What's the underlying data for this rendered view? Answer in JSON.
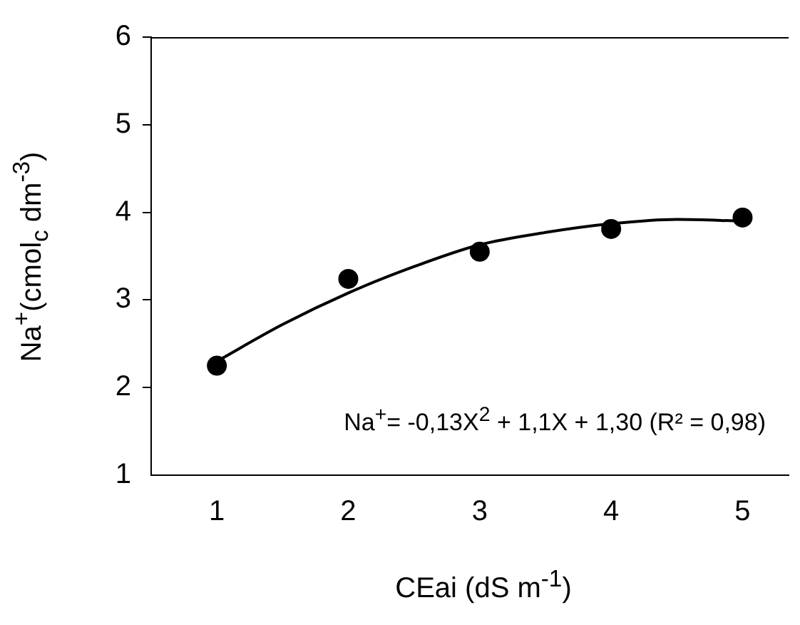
{
  "chart_data": {
    "type": "scatter",
    "xlabel": "CEai (dS m$^{-1}$)",
    "ylabel": "Na$^{+}$(cmol$_{c}$ dm$^{-3}$)",
    "annotations": [
      "Na$^{+}$= -0,13X$^{2}$ + 1,1X + 1,30 (R² = 0,98)"
    ],
    "x": [
      1,
      2,
      3,
      4,
      5
    ],
    "xlim": [
      0.5,
      5.35
    ],
    "xticks": [
      1,
      2,
      3,
      4,
      5
    ],
    "ylim": [
      1,
      6
    ],
    "yticks": [
      1,
      2,
      3,
      4,
      5,
      6
    ],
    "grid": false,
    "legend": false,
    "series": [
      {
        "type": "scatter",
        "color": "#000000",
        "marker": "circle",
        "values": [
          2.25,
          3.24,
          3.55,
          3.81,
          3.94
        ]
      },
      {
        "type": "line",
        "color": "#000000",
        "marker": "none",
        "line_style": "solid",
        "x": [
          1,
          1.5,
          2,
          2.5,
          3,
          3.5,
          4,
          4.5,
          5
        ],
        "values": [
          2.3,
          2.72,
          3.08,
          3.38,
          3.63,
          3.77,
          3.87,
          3.92,
          3.9
        ]
      }
    ]
  }
}
